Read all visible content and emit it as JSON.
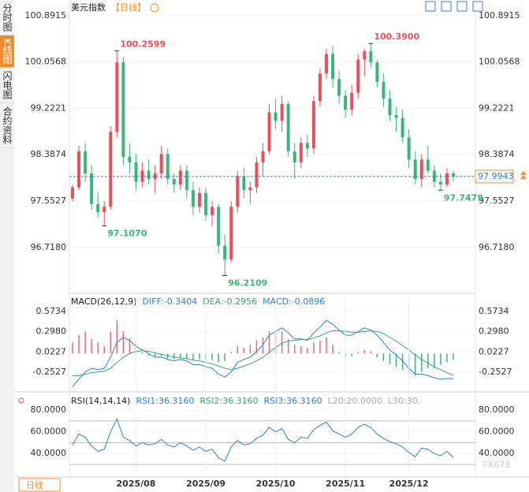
{
  "sidebar": {
    "tabs": [
      "分时图",
      "K线图",
      "闪电图",
      "合约资料"
    ],
    "active": 1
  },
  "period_button": "日线",
  "watermark": "FX678",
  "chart_data": [
    {
      "type": "candlestick",
      "title": "美元指数",
      "subtitle": "【日线】",
      "up_color": "#e8505b",
      "down_color": "#3cb47e",
      "ylim": [
        95.92,
        101.06
      ],
      "yticks": [
        100.8915,
        100.0568,
        99.2221,
        98.3874,
        97.5527,
        {
          "value": 96.718,
          "label": "96.7180"
        }
      ],
      "last_price": 97.9943,
      "annotations": [
        "100.2599",
        "97.1070",
        "96.2109",
        "100.3900",
        "97.7479"
      ],
      "candles": [
        [
          97.6,
          97.85,
          97.55,
          97.8
        ],
        [
          97.8,
          98.55,
          97.75,
          98.45
        ],
        [
          98.45,
          98.6,
          97.9,
          98.05
        ],
        [
          98.05,
          98.2,
          97.4,
          97.5
        ],
        [
          97.5,
          97.7,
          97.25,
          97.35
        ],
        [
          97.35,
          97.55,
          97.107,
          97.45
        ],
        [
          97.45,
          98.9,
          97.4,
          98.8
        ],
        [
          98.8,
          100.2599,
          98.7,
          100.05
        ],
        [
          100.05,
          100.15,
          98.2,
          98.35
        ],
        [
          98.35,
          98.6,
          98.05,
          98.25
        ],
        [
          98.25,
          98.4,
          97.75,
          97.9
        ],
        [
          97.9,
          98.25,
          97.8,
          98.1
        ],
        [
          98.1,
          98.3,
          97.85,
          97.95
        ],
        [
          97.95,
          98.2,
          97.7,
          98.05
        ],
        [
          98.05,
          98.55,
          97.95,
          98.4
        ],
        [
          98.4,
          98.5,
          97.85,
          97.95
        ],
        [
          97.95,
          98.05,
          97.7,
          97.85
        ],
        [
          97.85,
          98.2,
          97.75,
          98.1
        ],
        [
          98.1,
          98.2,
          97.6,
          97.75
        ],
        [
          97.75,
          97.9,
          97.3,
          97.45
        ],
        [
          97.45,
          97.8,
          97.35,
          97.7
        ],
        [
          97.7,
          97.8,
          97.2,
          97.3
        ],
        [
          97.3,
          97.55,
          97.1,
          97.45
        ],
        [
          97.45,
          97.5,
          96.6,
          96.75
        ],
        [
          96.75,
          96.95,
          96.2109,
          96.5
        ],
        [
          96.5,
          97.55,
          96.45,
          97.45
        ],
        [
          97.45,
          98.1,
          97.35,
          98.0
        ],
        [
          98.0,
          98.15,
          97.6,
          97.75
        ],
        [
          97.75,
          97.9,
          97.5,
          97.8
        ],
        [
          97.8,
          98.35,
          97.7,
          98.25
        ],
        [
          98.25,
          98.6,
          98.0,
          98.45
        ],
        [
          98.45,
          99.3,
          98.4,
          99.15
        ],
        [
          99.15,
          99.4,
          98.85,
          99.0
        ],
        [
          99.0,
          99.45,
          98.8,
          99.3
        ],
        [
          99.3,
          99.35,
          98.35,
          98.45
        ],
        [
          98.45,
          98.6,
          97.95,
          98.25
        ],
        [
          98.25,
          98.7,
          98.15,
          98.6
        ],
        [
          98.6,
          98.75,
          98.35,
          98.5
        ],
        [
          98.5,
          99.45,
          98.4,
          99.35
        ],
        [
          99.35,
          99.95,
          99.25,
          99.85
        ],
        [
          99.85,
          100.3,
          99.75,
          100.2
        ],
        [
          100.2,
          100.35,
          99.6,
          99.75
        ],
        [
          99.75,
          99.9,
          99.3,
          99.45
        ],
        [
          99.45,
          99.55,
          99.05,
          99.2
        ],
        [
          99.2,
          99.65,
          99.1,
          99.5
        ],
        [
          99.5,
          100.2,
          99.4,
          100.1
        ],
        [
          100.1,
          100.3,
          99.8,
          100.25
        ],
        [
          100.25,
          100.39,
          99.95,
          100.05
        ],
        [
          100.05,
          100.1,
          99.6,
          99.7
        ],
        [
          99.7,
          99.85,
          99.25,
          99.4
        ],
        [
          99.4,
          99.55,
          99.0,
          99.1
        ],
        [
          99.1,
          99.25,
          98.8,
          99.05
        ],
        [
          99.05,
          99.2,
          98.6,
          98.7
        ],
        [
          98.7,
          98.85,
          98.15,
          98.3
        ],
        [
          98.3,
          98.45,
          97.85,
          97.95
        ],
        [
          97.95,
          98.4,
          97.8,
          98.3
        ],
        [
          98.3,
          98.55,
          98.05,
          98.1
        ],
        [
          98.1,
          98.2,
          97.8,
          97.9
        ],
        [
          97.9,
          98.05,
          97.7479,
          97.85
        ],
        [
          97.85,
          98.15,
          97.8,
          98.05
        ],
        [
          98.05,
          98.1,
          97.9,
          97.9943
        ]
      ]
    },
    {
      "type": "macd",
      "title": "MACD(26,12,9)",
      "ylim": [
        -0.5,
        0.755
      ],
      "yticks": [
        0.5734,
        {
          "value": 0.298,
          "label": "0.2980"
        },
        0.0227,
        -0.2527
      ],
      "series": [
        {
          "name": "DIFF:-0.3404",
          "color": "#2d7fd6",
          "values": [
            -0.45,
            -0.35,
            -0.25,
            -0.2,
            -0.22,
            -0.2,
            -0.05,
            0.15,
            0.22,
            0.18,
            0.1,
            0.05,
            0,
            -0.05,
            -0.05,
            -0.08,
            -0.1,
            -0.08,
            -0.1,
            -0.15,
            -0.15,
            -0.18,
            -0.2,
            -0.28,
            -0.32,
            -0.25,
            -0.12,
            -0.08,
            -0.05,
            0.03,
            0.12,
            0.25,
            0.3,
            0.35,
            0.28,
            0.2,
            0.2,
            0.18,
            0.28,
            0.36,
            0.45,
            0.4,
            0.32,
            0.25,
            0.25,
            0.3,
            0.35,
            0.32,
            0.25,
            0.15,
            0.05,
            -0.02,
            -0.1,
            -0.2,
            -0.28,
            -0.28,
            -0.3,
            -0.33,
            -0.35,
            -0.34,
            -0.3404
          ]
        },
        {
          "name": "DEA:-0.2956",
          "color": "#3aa76d",
          "values": [
            -0.3,
            -0.3,
            -0.28,
            -0.26,
            -0.25,
            -0.24,
            -0.2,
            -0.12,
            -0.05,
            0,
            0.03,
            0.04,
            0.03,
            0.01,
            -0.01,
            -0.03,
            -0.05,
            -0.06,
            -0.07,
            -0.09,
            -0.1,
            -0.12,
            -0.14,
            -0.17,
            -0.2,
            -0.22,
            -0.2,
            -0.17,
            -0.14,
            -0.1,
            -0.05,
            0.02,
            0.08,
            0.14,
            0.17,
            0.18,
            0.19,
            0.19,
            0.21,
            0.24,
            0.28,
            0.31,
            0.31,
            0.3,
            0.29,
            0.29,
            0.3,
            0.31,
            0.3,
            0.27,
            0.22,
            0.17,
            0.11,
            0.05,
            -0.02,
            -0.08,
            -0.13,
            -0.18,
            -0.22,
            -0.26,
            -0.2956
          ]
        },
        {
          "name": "MACD:-0.0896",
          "color": "#2d7fd6",
          "up_color": "#e06c78",
          "down_color": "#3cb47e",
          "values": [
            0.15,
            0.25,
            0.3,
            0.2,
            0.15,
            0.1,
            0.3,
            0.45,
            0.3,
            0.2,
            0.1,
            0.02,
            -0.03,
            -0.05,
            -0.04,
            -0.07,
            -0.08,
            -0.06,
            -0.07,
            -0.09,
            -0.08,
            -0.1,
            -0.09,
            -0.12,
            -0.1,
            0.02,
            0.1,
            0.08,
            0.12,
            0.18,
            0.22,
            0.3,
            0.28,
            0.3,
            0.2,
            0.12,
            0.1,
            0.08,
            0.15,
            0.18,
            0.22,
            0.12,
            0.02,
            -0.05,
            -0.03,
            0.02,
            0.05,
            0.03,
            -0.05,
            -0.1,
            -0.15,
            -0.18,
            -0.22,
            -0.28,
            -0.3,
            -0.25,
            -0.2,
            -0.2,
            -0.15,
            -0.12,
            -0.0896
          ]
        }
      ]
    },
    {
      "type": "rsi",
      "title": "RSI(14,14,14)",
      "ylim": [
        22,
        91
      ],
      "yticks": [
        {
          "value": 80,
          "label": "80.0000"
        },
        {
          "value": 60,
          "label": "60.0000"
        },
        {
          "value": 40,
          "label": "40.0000"
        }
      ],
      "levels": [
        70,
        50,
        30
      ],
      "legend_extra": [
        {
          "text": "RSI2:36.3160",
          "color": "#3aa76d"
        },
        {
          "text": "RSI3:36.3160",
          "color": "#2d7fd6"
        },
        {
          "text": "L20:20.0000",
          "color": "#aaaaaa"
        },
        {
          "text": "L30:30.",
          "color": "#aaaaaa"
        }
      ],
      "series": [
        {
          "name": "RSI1:36.3160",
          "color": "#2d7fd6",
          "values": [
            48,
            58,
            55,
            47,
            42,
            44,
            60,
            72,
            55,
            52,
            47,
            50,
            48,
            49,
            53,
            48,
            46,
            50,
            47,
            43,
            46,
            42,
            44,
            36,
            33,
            46,
            52,
            48,
            49,
            54,
            57,
            64,
            60,
            63,
            53,
            50,
            55,
            54,
            62,
            66,
            69,
            61,
            58,
            55,
            58,
            64,
            67,
            64,
            58,
            54,
            51,
            49,
            46,
            41,
            37,
            45,
            44,
            40,
            38,
            42,
            36.316
          ]
        }
      ],
      "categories": [
        null,
        null,
        null,
        null,
        null,
        null,
        null,
        null,
        null,
        null,
        "2025/08",
        null,
        null,
        null,
        null,
        null,
        null,
        null,
        null,
        null,
        null,
        "2025/09",
        null,
        null,
        null,
        null,
        null,
        null,
        null,
        null,
        null,
        null,
        "2025/10",
        null,
        null,
        null,
        null,
        null,
        null,
        null,
        null,
        null,
        null,
        "2025/11",
        null,
        null,
        null,
        null,
        null,
        null,
        null,
        null,
        null,
        "2025/12",
        null,
        null,
        null,
        null,
        null,
        null,
        null
      ]
    }
  ]
}
